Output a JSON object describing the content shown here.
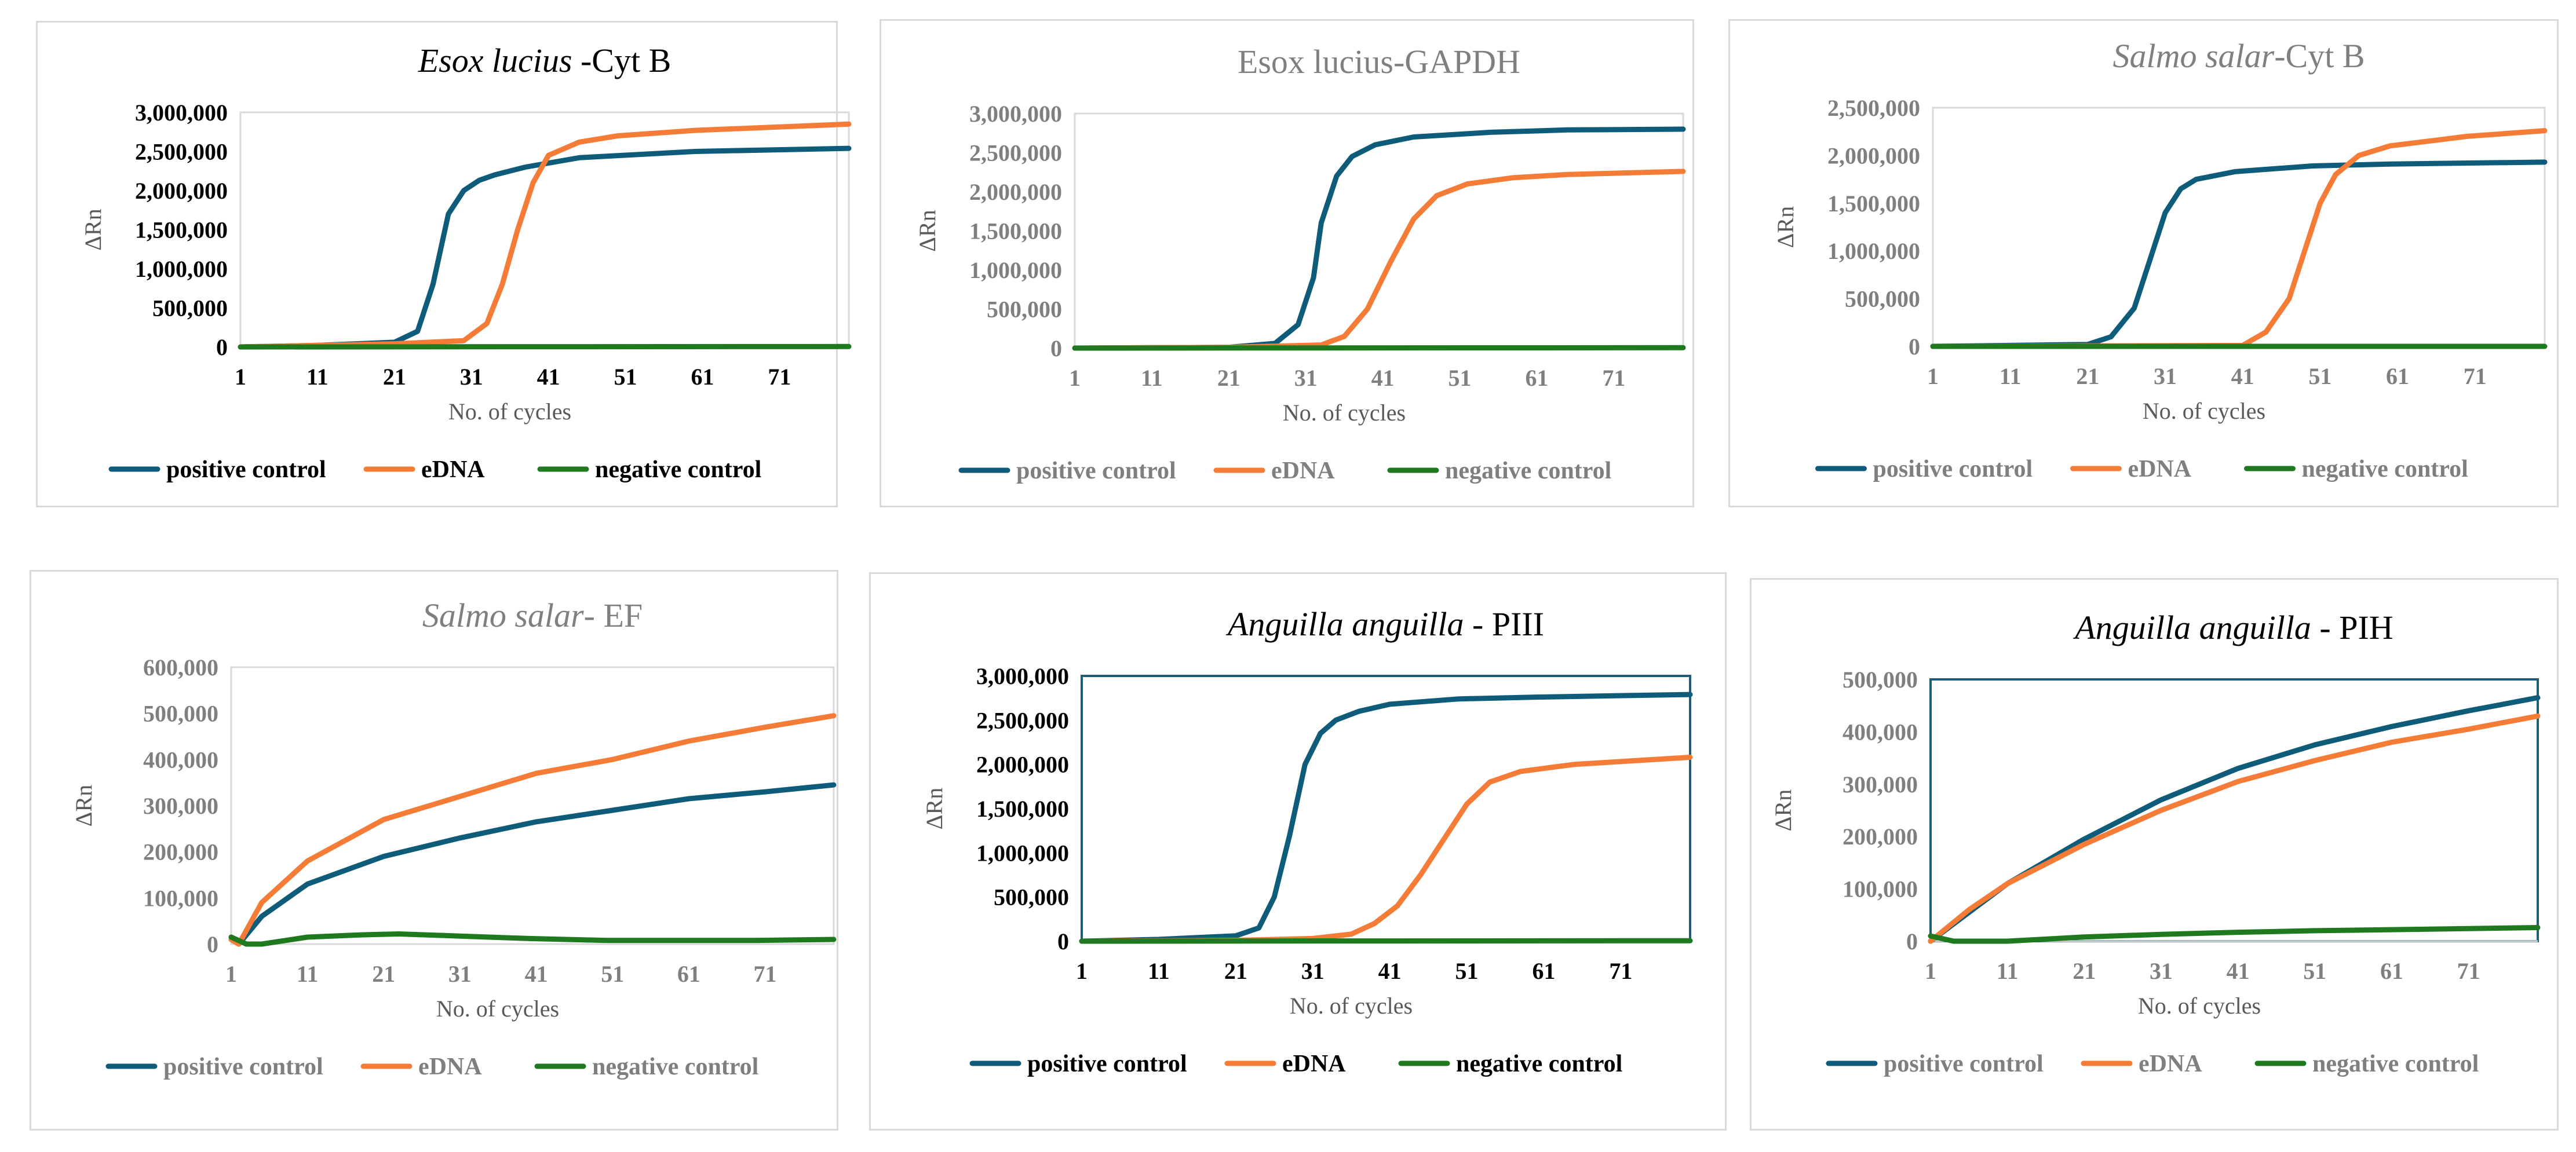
{
  "chart_data": [
    {
      "type": "line",
      "title_italic": "Esox lucius",
      "title_rest": " -Cyt B",
      "title_style": "black",
      "plot_border": "grey",
      "xlabel": "No. of cycles",
      "ylabel": "ΔRn",
      "x_ticks": [
        1,
        11,
        21,
        31,
        41,
        51,
        61,
        71
      ],
      "xlim": [
        1,
        80
      ],
      "ylim": [
        0,
        3000000
      ],
      "y_ticks": [
        "0",
        "500,000",
        "1,000,000",
        "1,500,000",
        "2,000,000",
        "2,500,000",
        "3,000,000"
      ],
      "y_tick_values": [
        0,
        500000,
        1000000,
        1500000,
        2000000,
        2500000,
        3000000
      ],
      "legend": [
        "positive control",
        "eDNA",
        "negative control"
      ],
      "series": [
        {
          "name": "positive control",
          "color": "#0e5c7a",
          "x": [
            1,
            11,
            21,
            24,
            26,
            28,
            30,
            32,
            34,
            38,
            45,
            60,
            80
          ],
          "values": [
            0,
            20000,
            60000,
            200000,
            800000,
            1700000,
            2000000,
            2130000,
            2200000,
            2300000,
            2420000,
            2500000,
            2540000
          ]
        },
        {
          "name": "eDNA",
          "color": "#f47c36",
          "x": [
            1,
            11,
            21,
            30,
            33,
            35,
            37,
            39,
            41,
            45,
            50,
            60,
            80
          ],
          "values": [
            0,
            20000,
            40000,
            80000,
            300000,
            800000,
            1500000,
            2100000,
            2450000,
            2620000,
            2700000,
            2770000,
            2850000
          ]
        },
        {
          "name": "negative control",
          "color": "#1f7a1f",
          "x": [
            1,
            80
          ],
          "values": [
            0,
            5000
          ]
        }
      ]
    },
    {
      "type": "line",
      "title_italic": "",
      "title_rest": "Esox lucius-GAPDH",
      "title_style": "grey-small",
      "plot_border": "grey",
      "xlabel": "No. of cycles",
      "ylabel": "ΔRn",
      "x_ticks": [
        1,
        11,
        21,
        31,
        41,
        51,
        61,
        71
      ],
      "xlim": [
        1,
        80
      ],
      "ylim": [
        0,
        3000000
      ],
      "y_ticks": [
        "0",
        "500,000",
        "1,000,000",
        "1,500,000",
        "2,000,000",
        "2,500,000",
        "3,000,000"
      ],
      "y_tick_values": [
        0,
        500000,
        1000000,
        1500000,
        2000000,
        2500000,
        3000000
      ],
      "legend": [
        "positive control",
        "eDNA",
        "negative control"
      ],
      "series": [
        {
          "name": "positive control",
          "color": "#0e5c7a",
          "x": [
            1,
            21,
            27,
            30,
            32,
            33,
            35,
            37,
            40,
            45,
            55,
            65,
            80
          ],
          "values": [
            0,
            10000,
            60000,
            300000,
            900000,
            1600000,
            2200000,
            2450000,
            2600000,
            2700000,
            2760000,
            2790000,
            2800000
          ]
        },
        {
          "name": "eDNA",
          "color": "#f47c36",
          "x": [
            1,
            21,
            33,
            36,
            39,
            42,
            45,
            48,
            52,
            58,
            65,
            80
          ],
          "values": [
            0,
            10000,
            40000,
            150000,
            500000,
            1100000,
            1650000,
            1950000,
            2100000,
            2180000,
            2220000,
            2260000
          ]
        },
        {
          "name": "negative control",
          "color": "#1f7a1f",
          "x": [
            1,
            80
          ],
          "values": [
            0,
            5000
          ]
        }
      ]
    },
    {
      "type": "line",
      "title_italic": "Salmo salar",
      "title_rest": "-Cyt B",
      "title_style": "grey",
      "plot_border": "grey",
      "xlabel": "No. of cycles",
      "ylabel": "ΔRn",
      "x_ticks": [
        1,
        11,
        21,
        31,
        41,
        51,
        61,
        71
      ],
      "xlim": [
        1,
        80
      ],
      "ylim": [
        0,
        2500000
      ],
      "y_ticks": [
        "0",
        "500,000",
        "1,000,000",
        "1,500,000",
        "2,000,000",
        "2,500,000"
      ],
      "y_tick_values": [
        0,
        500000,
        1000000,
        1500000,
        2000000,
        2500000
      ],
      "legend": [
        "positive control",
        "eDNA",
        "negative control"
      ],
      "series": [
        {
          "name": "positive control",
          "color": "#0e5c7a",
          "x": [
            1,
            21,
            24,
            27,
            29,
            31,
            33,
            35,
            40,
            50,
            60,
            80
          ],
          "values": [
            0,
            20000,
            100000,
            400000,
            900000,
            1400000,
            1650000,
            1750000,
            1830000,
            1890000,
            1910000,
            1930000
          ]
        },
        {
          "name": "eDNA",
          "color": "#f47c36",
          "x": [
            1,
            41,
            44,
            47,
            49,
            51,
            53,
            56,
            60,
            65,
            70,
            80
          ],
          "values": [
            0,
            10000,
            150000,
            500000,
            1000000,
            1500000,
            1800000,
            2000000,
            2100000,
            2150000,
            2200000,
            2260000
          ]
        },
        {
          "name": "negative control",
          "color": "#1f7a1f",
          "x": [
            1,
            80
          ],
          "values": [
            0,
            0
          ]
        }
      ]
    },
    {
      "type": "line",
      "title_italic": "Salmo salar",
      "title_rest": "- EF",
      "title_style": "grey",
      "plot_border": "grey",
      "xlabel": "No. of cycles",
      "ylabel": "ΔRn",
      "x_ticks": [
        1,
        11,
        21,
        31,
        41,
        51,
        61,
        71
      ],
      "xlim": [
        1,
        80
      ],
      "ylim": [
        0,
        600000
      ],
      "y_ticks": [
        "0",
        "100,000",
        "200,000",
        "300,000",
        "400,000",
        "500,000",
        "600,000"
      ],
      "y_tick_values": [
        0,
        100000,
        200000,
        300000,
        400000,
        500000,
        600000
      ],
      "legend": [
        "positive control",
        "eDNA",
        "negative control"
      ],
      "series": [
        {
          "name": "positive control",
          "color": "#0e5c7a",
          "x": [
            1,
            2,
            5,
            11,
            21,
            31,
            41,
            51,
            61,
            71,
            80
          ],
          "values": [
            10000,
            0,
            60000,
            130000,
            190000,
            230000,
            265000,
            290000,
            315000,
            330000,
            345000
          ]
        },
        {
          "name": "eDNA",
          "color": "#f47c36",
          "x": [
            1,
            2,
            5,
            11,
            21,
            31,
            41,
            51,
            61,
            71,
            80
          ],
          "values": [
            10000,
            0,
            90000,
            180000,
            270000,
            320000,
            370000,
            400000,
            440000,
            470000,
            495000
          ]
        },
        {
          "name": "negative control",
          "color": "#1f7a1f",
          "x": [
            1,
            3,
            5,
            11,
            18,
            23,
            30,
            40,
            50,
            60,
            70,
            80
          ],
          "values": [
            15000,
            0,
            0,
            15000,
            20000,
            22000,
            18000,
            12000,
            8000,
            8000,
            8000,
            10000
          ]
        }
      ]
    },
    {
      "type": "line",
      "title_italic": "Anguilla anguilla",
      "title_rest": " - PIII",
      "title_style": "black",
      "plot_border": "blue",
      "xlabel": "No. of cycles",
      "ylabel": "ΔRn",
      "x_ticks": [
        1,
        11,
        21,
        31,
        41,
        51,
        61,
        71
      ],
      "xlim": [
        1,
        80
      ],
      "ylim": [
        0,
        3000000
      ],
      "y_ticks": [
        "0",
        "500,000",
        "1,000,000",
        "1,500,000",
        "2,000,000",
        "2,500,000",
        "3,000,000"
      ],
      "y_tick_values": [
        0,
        500000,
        1000000,
        1500000,
        2000000,
        2500000,
        3000000
      ],
      "legend": [
        "positive control",
        "eDNA",
        "negative control"
      ],
      "series": [
        {
          "name": "positive control",
          "color": "#0e5c7a",
          "x": [
            1,
            11,
            21,
            24,
            26,
            28,
            30,
            32,
            34,
            37,
            41,
            50,
            60,
            80
          ],
          "values": [
            0,
            20000,
            60000,
            150000,
            500000,
            1200000,
            2000000,
            2350000,
            2500000,
            2600000,
            2680000,
            2740000,
            2760000,
            2790000
          ]
        },
        {
          "name": "eDNA",
          "color": "#f47c36",
          "x": [
            1,
            21,
            31,
            36,
            39,
            42,
            45,
            48,
            51,
            54,
            58,
            65,
            80
          ],
          "values": [
            0,
            10000,
            30000,
            80000,
            200000,
            400000,
            750000,
            1150000,
            1550000,
            1800000,
            1920000,
            2000000,
            2080000
          ]
        },
        {
          "name": "negative control",
          "color": "#1f7a1f",
          "x": [
            1,
            80
          ],
          "values": [
            0,
            5000
          ]
        }
      ]
    },
    {
      "type": "line",
      "title_italic": "Anguilla anguilla",
      "title_rest": " - PIH",
      "title_style": "black",
      "plot_border": "blue",
      "xlabel": "No. of cycles",
      "ylabel": "ΔRn",
      "x_ticks": [
        1,
        11,
        21,
        31,
        41,
        51,
        61,
        71
      ],
      "xlim": [
        1,
        80
      ],
      "ylim": [
        0,
        500000
      ],
      "y_ticks": [
        "0",
        "100,000",
        "200,000",
        "300,000",
        "400,000",
        "500,000"
      ],
      "y_tick_values": [
        0,
        100000,
        200000,
        300000,
        400000,
        500000
      ],
      "legend": [
        "positive control",
        "eDNA",
        "negative control"
      ],
      "series": [
        {
          "name": "positive control",
          "color": "#0e5c7a",
          "x": [
            1,
            6,
            11,
            21,
            31,
            41,
            51,
            61,
            71,
            80
          ],
          "values": [
            0,
            55000,
            110000,
            195000,
            270000,
            330000,
            375000,
            410000,
            440000,
            465000
          ]
        },
        {
          "name": "eDNA",
          "color": "#f47c36",
          "x": [
            1,
            6,
            11,
            21,
            31,
            41,
            51,
            61,
            71,
            80
          ],
          "values": [
            0,
            60000,
            110000,
            185000,
            250000,
            305000,
            345000,
            380000,
            405000,
            430000
          ]
        },
        {
          "name": "negative control",
          "color": "#1f7a1f",
          "x": [
            1,
            4,
            11,
            21,
            31,
            41,
            51,
            61,
            71,
            80
          ],
          "values": [
            10000,
            0,
            0,
            8000,
            13000,
            17000,
            20000,
            22000,
            24000,
            26000
          ]
        }
      ]
    }
  ]
}
